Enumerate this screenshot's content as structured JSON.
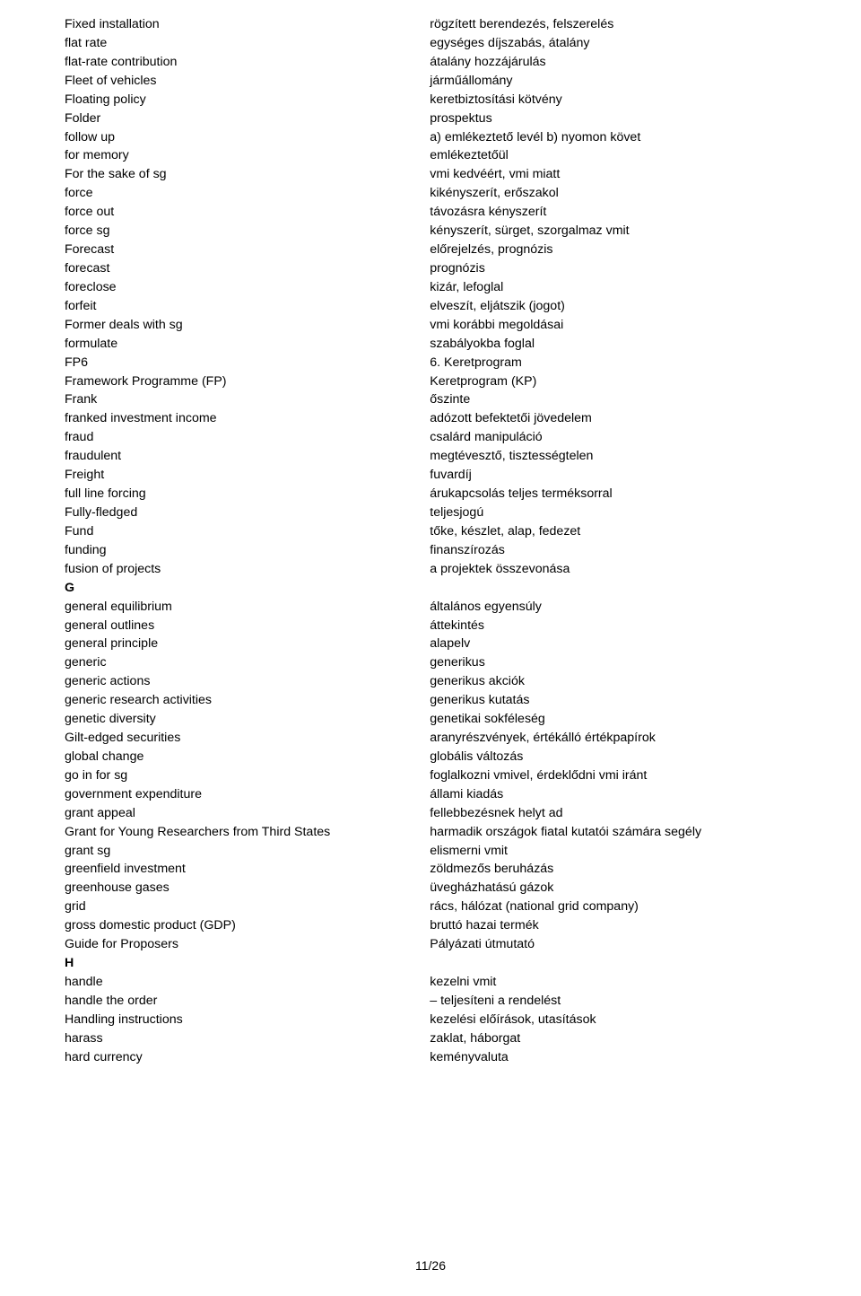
{
  "page_number": "11/26",
  "section_letters": [
    "G",
    "H"
  ],
  "entries": [
    {
      "en": "Fixed installation",
      "hu": "rögzített berendezés, felszerelés"
    },
    {
      "en": "flat rate",
      "hu": "egységes díjszabás, átalány"
    },
    {
      "en": "flat-rate contribution",
      "hu": "átalány hozzájárulás"
    },
    {
      "en": "Fleet of vehicles",
      "hu": "járműállomány"
    },
    {
      "en": "Floating policy",
      "hu": "keretbiztosítási kötvény"
    },
    {
      "en": "Folder",
      "hu": "prospektus"
    },
    {
      "en": "follow up",
      "hu": "a) emlékeztető levél b) nyomon követ"
    },
    {
      "en": "for memory",
      "hu": "emlékeztetőül"
    },
    {
      "en": "For the sake of sg",
      "hu": "vmi kedvéért, vmi miatt"
    },
    {
      "en": "force",
      "hu": "kikényszerít, erőszakol"
    },
    {
      "en": "force out",
      "hu": "távozásra kényszerít"
    },
    {
      "en": "force sg",
      "hu": "kényszerít, sürget, szorgalmaz vmit"
    },
    {
      "en": "Forecast",
      "hu": "előrejelzés, prognózis"
    },
    {
      "en": "forecast",
      "hu": "prognózis"
    },
    {
      "en": "foreclose",
      "hu": "kizár, lefoglal"
    },
    {
      "en": "forfeit",
      "hu": "elveszít, eljátszik (jogot)"
    },
    {
      "en": "Former deals with sg",
      "hu": "vmi korábbi megoldásai"
    },
    {
      "en": "formulate",
      "hu": "szabályokba foglal"
    },
    {
      "en": "FP6",
      "hu": "6. Keretprogram"
    },
    {
      "en": "Framework Programme (FP)",
      "hu": "Keretprogram (KP)"
    },
    {
      "en": "Frank",
      "hu": "őszinte"
    },
    {
      "en": "franked investment income",
      "hu": "adózott befektetői jövedelem"
    },
    {
      "en": "fraud",
      "hu": "csalárd manipuláció"
    },
    {
      "en": "fraudulent",
      "hu": "megtévesztő, tisztességtelen"
    },
    {
      "en": "Freight",
      "hu": "fuvardíj"
    },
    {
      "en": "full line forcing",
      "hu": "árukapcsolás teljes terméksorral"
    },
    {
      "en": "Fully-fledged",
      "hu": "teljesjogú"
    },
    {
      "en": "Fund",
      "hu": "tőke, készlet, alap, fedezet"
    },
    {
      "en": "funding",
      "hu": "finanszírozás"
    },
    {
      "en": "fusion of projects",
      "hu": "a projektek összevonása"
    },
    {
      "en": "G",
      "hu": "",
      "section": true
    },
    {
      "en": "general equilibrium",
      "hu": "általános egyensúly"
    },
    {
      "en": "general outlines",
      "hu": "áttekintés"
    },
    {
      "en": "general principle",
      "hu": "alapelv"
    },
    {
      "en": "generic",
      "hu": "generikus"
    },
    {
      "en": "generic actions",
      "hu": "generikus akciók"
    },
    {
      "en": "generic research activities",
      "hu": "generikus kutatás"
    },
    {
      "en": "genetic diversity",
      "hu": "genetikai sokféleség"
    },
    {
      "en": "Gilt-edged securities",
      "hu": "aranyrészvények, értékálló értékpapírok"
    },
    {
      "en": "global change",
      "hu": "globális változás"
    },
    {
      "en": "go in for sg",
      "hu": "foglalkozni vmivel, érdeklődni vmi iránt"
    },
    {
      "en": "government expenditure",
      "hu": "állami kiadás"
    },
    {
      "en": "grant appeal",
      "hu": "fellebbezésnek helyt ad"
    },
    {
      "en": "Grant for Young Researchers from Third States",
      "hu": "harmadik országok fiatal kutatói számára segély"
    },
    {
      "en": "grant sg",
      "hu": "elismerni vmit"
    },
    {
      "en": "greenfield investment",
      "hu": "zöldmezős beruházás"
    },
    {
      "en": "greenhouse gases",
      "hu": "üvegházhatású gázok"
    },
    {
      "en": "grid",
      "hu": "rács, hálózat (national grid company)"
    },
    {
      "en": "gross domestic product (GDP)",
      "hu": "bruttó hazai termék"
    },
    {
      "en": "Guide for Proposers",
      "hu": "Pályázati útmutató"
    },
    {
      "en": "H",
      "hu": "",
      "section": true
    },
    {
      "en": "handle",
      "hu": "kezelni vmit"
    },
    {
      "en": "handle the order",
      "hu": "– teljesíteni a rendelést"
    },
    {
      "en": "Handling instructions",
      "hu": "kezelési előírások, utasítások"
    },
    {
      "en": "harass",
      "hu": "zaklat, háborgat"
    },
    {
      "en": "hard currency",
      "hu": "keményvaluta"
    }
  ]
}
